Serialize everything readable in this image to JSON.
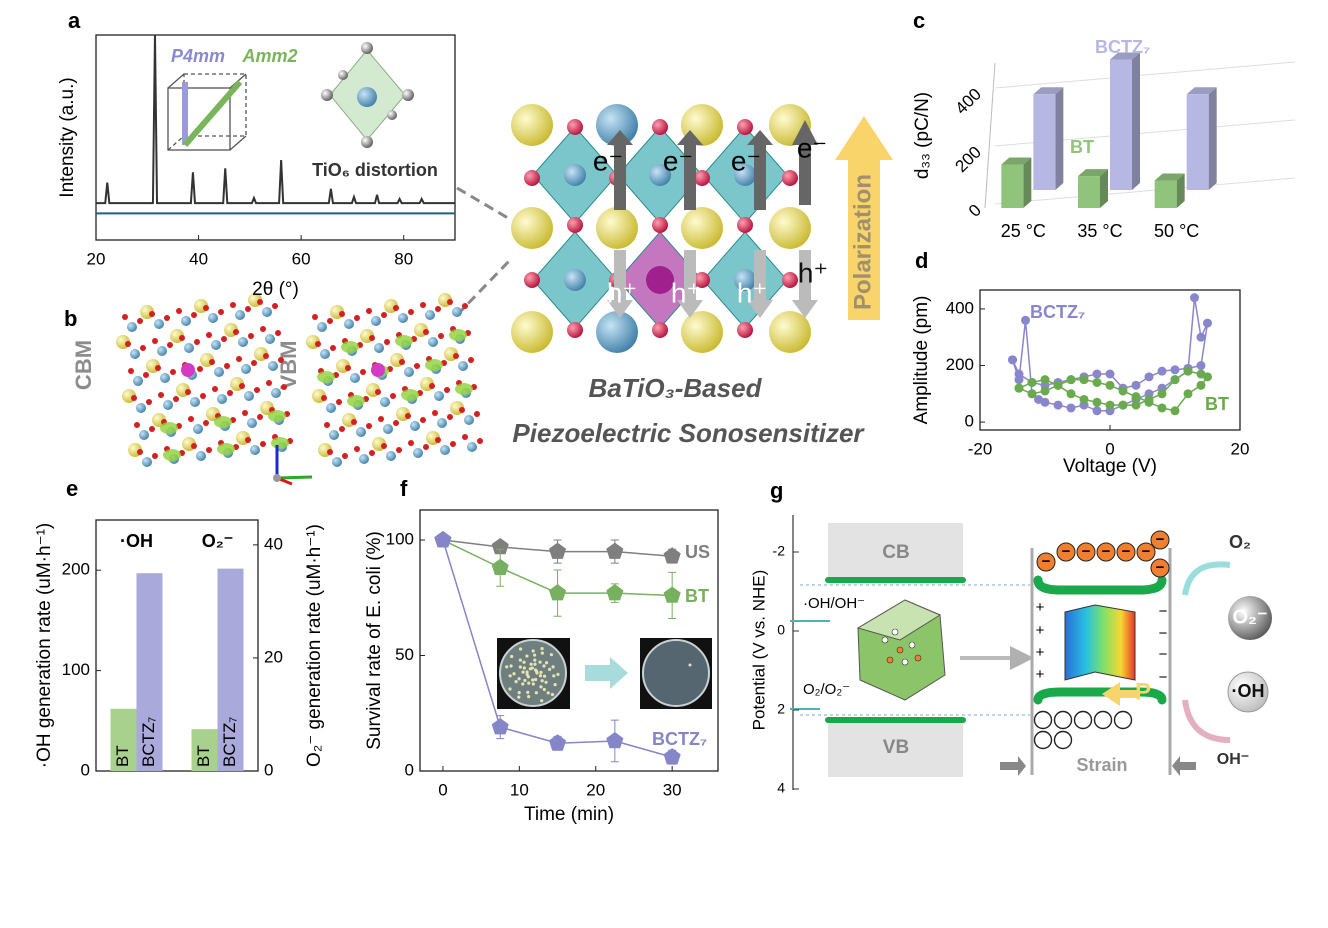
{
  "labels": [
    "a",
    "b",
    "c",
    "d",
    "e",
    "f",
    "g"
  ],
  "a_inset": {
    "phase1": "P4mm",
    "phase2": "Amm2",
    "caption": "TiO₆ distortion"
  },
  "b": {
    "cbm": "CBM",
    "vbm": "VBM"
  },
  "center": {
    "electron": "e⁻",
    "hole": "h⁺",
    "polarization": "Polarization",
    "title_line1": "BaTiO₃-Based",
    "title_line2": "Piezoelectric Sonosensitizer"
  },
  "g": {
    "cb": "CB",
    "vb": "VB",
    "oh_couple": "·OH/OH⁻",
    "o2_couple": "O₂/O₂⁻",
    "potential_label": "Potential (V vs. NHE)",
    "potential_ticks": [
      -2,
      0,
      2,
      4
    ],
    "strain": "Strain",
    "p": "P",
    "o2": "O₂",
    "o2_radical": "O₂⁻",
    "oh_radical": "·OH",
    "oh_ion": "OH⁻",
    "plus": "+",
    "minus": "−"
  },
  "chart_data": [
    {
      "type": "line",
      "xlabel": "2θ (°)",
      "ylabel": "Intensity (a.u.)",
      "xlim": [
        20,
        90
      ],
      "xticks": [
        20,
        40,
        60,
        80
      ],
      "ylim": [
        0,
        100
      ],
      "series": [
        {
          "color": "#333333",
          "x": [
            20,
            21.8,
            22.2,
            22.6,
            31.1,
            31.5,
            31.9,
            38.5,
            38.9,
            39.3,
            44.8,
            45.2,
            45.6,
            50.4,
            50.8,
            51.2,
            55.7,
            56.1,
            56.5,
            65.4,
            65.8,
            66.2,
            69.9,
            70.3,
            70.7,
            74.4,
            74.8,
            75.2,
            78.8,
            79.2,
            79.6,
            83.1,
            83.5,
            83.9,
            90
          ],
          "values": [
            18,
            18,
            28,
            18,
            18,
            100,
            18,
            18,
            33,
            18,
            18,
            35,
            18,
            18,
            20.5,
            18,
            18,
            39,
            18,
            18,
            25,
            18,
            18,
            21,
            18,
            18,
            22,
            18,
            18,
            20,
            18,
            18,
            20,
            18,
            18
          ]
        },
        {
          "color": "#1f5f7f",
          "x": [
            20,
            90
          ],
          "values": [
            13,
            13
          ]
        }
      ]
    },
    {
      "type": "bar3d",
      "ylabel": "d₃₃ (pC/N)",
      "categories": [
        "25 °C",
        "35 °C",
        "50 °C"
      ],
      "ylim": [
        0,
        500
      ],
      "yticks": [
        0,
        200,
        400
      ],
      "series": [
        {
          "name": "BT",
          "color": "#90c47c",
          "values": [
            150,
            110,
            95
          ]
        },
        {
          "name": "BCTZ₇",
          "color": "#b7b7e3",
          "values": [
            330,
            450,
            330
          ]
        }
      ]
    },
    {
      "type": "line",
      "markers": "circle",
      "xlabel": "Voltage (V)",
      "ylabel": "Amplitude (pm)",
      "xlim": [
        -20,
        20
      ],
      "xticks": [
        -20,
        0,
        20
      ],
      "ylim": [
        -28,
        467
      ],
      "yticks": [
        0,
        200,
        400
      ],
      "series": [
        {
          "name": "BCTZ₇",
          "color": "#8a86cc",
          "x": [
            -15,
            -14,
            -13,
            -12,
            -11,
            -10,
            -8,
            -6,
            -4,
            -2,
            0,
            2,
            4,
            6,
            8,
            10,
            12,
            13,
            14,
            15,
            14,
            12,
            10,
            8,
            6,
            4,
            2,
            0,
            -2,
            -4,
            -6,
            -8,
            -10,
            -12,
            -14,
            -15
          ],
          "values": [
            220,
            150,
            360,
            100,
            80,
            70,
            60,
            50,
            60,
            40,
            40,
            60,
            80,
            100,
            120,
            150,
            180,
            440,
            300,
            350,
            200,
            190,
            185,
            180,
            160,
            130,
            120,
            170,
            170,
            160,
            150,
            140,
            130,
            140,
            170,
            220
          ]
        },
        {
          "name": "BT",
          "color": "#6aaa4e",
          "x": [
            -14,
            -12,
            -10,
            -8,
            -6,
            -4,
            -2,
            0,
            2,
            4,
            6,
            8,
            10,
            12,
            14,
            15,
            14,
            12,
            10,
            8,
            6,
            4,
            2,
            0,
            -2,
            -4,
            -6,
            -8,
            -10,
            -12,
            -14
          ],
          "values": [
            120,
            140,
            150,
            130,
            100,
            80,
            70,
            60,
            60,
            60,
            80,
            100,
            150,
            180,
            170,
            160,
            130,
            100,
            40,
            50,
            70,
            90,
            110,
            130,
            140,
            150,
            150,
            130,
            110,
            100,
            120
          ]
        }
      ]
    },
    {
      "type": "bar",
      "categories": [
        "·OH",
        "O₂⁻"
      ],
      "ylabel": "·OH generation rate (uM·h⁻¹)",
      "y2label": "O₂⁻ generation rate (uM·h⁻¹)",
      "ylim": [
        0,
        250
      ],
      "yticks": [
        0,
        100,
        200
      ],
      "y2lim": [
        0,
        44.4
      ],
      "y2ticks": [
        0,
        20,
        40
      ],
      "series": [
        {
          "name": "BT",
          "color": "#a9d18e",
          "values": [
            62,
            null
          ]
        },
        {
          "name": "BCTZ₇",
          "color": "#a9a9dc",
          "values": [
            197,
            null
          ]
        },
        {
          "name": "BT",
          "color": "#a9d18e",
          "axis": "y2",
          "values": [
            null,
            7.4
          ]
        },
        {
          "name": "BCTZ₇",
          "color": "#a9a9dc",
          "axis": "y2",
          "values": [
            null,
            35.8
          ]
        }
      ]
    },
    {
      "type": "line",
      "markers": "pentagon",
      "xlabel": "Time (min)",
      "ylabel": "Survival rate of E. coli (%)",
      "x": [
        0,
        7.5,
        15,
        22.5,
        30
      ],
      "xlim": [
        -3,
        36
      ],
      "xticks": [
        0,
        10,
        20,
        30
      ],
      "ylim": [
        0,
        113
      ],
      "yticks": [
        0,
        50,
        100
      ],
      "series": [
        {
          "name": "US",
          "color": "#7f7f7f",
          "values": [
            100,
            97,
            95,
            95,
            93
          ],
          "errors": [
            0,
            2,
            5,
            5,
            3
          ]
        },
        {
          "name": "BT",
          "color": "#77b05e",
          "values": [
            100,
            88,
            77,
            77,
            76
          ],
          "errors": [
            0,
            8,
            10,
            4,
            10
          ]
        },
        {
          "name": "BCTZ₇",
          "color": "#8585c8",
          "values": [
            100,
            19,
            12,
            13,
            6
          ],
          "errors": [
            0,
            5,
            3,
            9,
            3
          ]
        }
      ]
    }
  ]
}
